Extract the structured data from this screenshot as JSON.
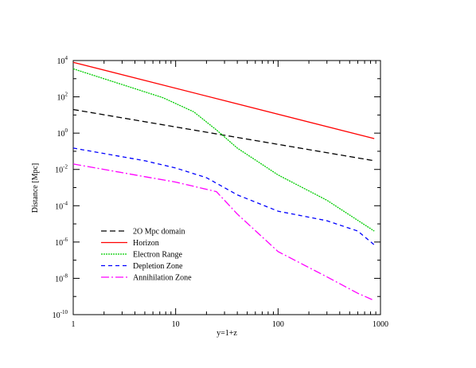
{
  "chart_data": {
    "type": "line",
    "title": "",
    "xlabel": "y=1+z",
    "ylabel": "Distance [Mpc]",
    "xscale": "log",
    "yscale": "log",
    "xlim": [
      1,
      1000
    ],
    "ylim": [
      1e-10,
      10000
    ],
    "grid": false,
    "legend_position": "bottom-left",
    "x_ticks": [
      {
        "value": 1,
        "label": "1"
      },
      {
        "value": 10,
        "label": "10"
      },
      {
        "value": 100,
        "label": "100"
      },
      {
        "value": 1000,
        "label": "1000"
      }
    ],
    "y_ticks": [
      {
        "value": 1e-10,
        "base": "10",
        "exp": "-10"
      },
      {
        "value": 1e-08,
        "base": "10",
        "exp": "-8"
      },
      {
        "value": 1e-06,
        "base": "10",
        "exp": "-6"
      },
      {
        "value": 0.0001,
        "base": "10",
        "exp": "-4"
      },
      {
        "value": 0.01,
        "base": "10",
        "exp": "-2"
      },
      {
        "value": 1,
        "base": "10",
        "exp": "0"
      },
      {
        "value": 100,
        "base": "10",
        "exp": "2"
      },
      {
        "value": 10000,
        "base": "10",
        "exp": "4"
      }
    ],
    "series": [
      {
        "name": "2O Mpc domain",
        "color": "#000000",
        "dash": "7,4",
        "x": [
          1,
          870
        ],
        "y": [
          20,
          0.03
        ]
      },
      {
        "name": "Horizon",
        "color": "#ff0000",
        "dash": "",
        "x": [
          1,
          870
        ],
        "y": [
          8000,
          0.5
        ]
      },
      {
        "name": "Electron Range",
        "color": "#00cc00",
        "dash": "2,1",
        "x": [
          1,
          7.5,
          15,
          25,
          40,
          100,
          300,
          870
        ],
        "y": [
          3500,
          90,
          15,
          1.5,
          0.15,
          0.005,
          0.0002,
          4e-06
        ]
      },
      {
        "name": "Depletion Zone",
        "color": "#0000ff",
        "dash": "5,4",
        "x": [
          1,
          5,
          10,
          20,
          40,
          100,
          300,
          600,
          870
        ],
        "y": [
          0.15,
          0.03,
          0.012,
          0.0035,
          0.0004,
          5e-05,
          1.5e-05,
          4e-06,
          7e-07
        ]
      },
      {
        "name": "Annihilation Zone",
        "color": "#ff00ff",
        "dash": "10,3,2,3",
        "x": [
          1,
          5,
          10,
          25,
          40,
          100,
          300,
          600,
          870
        ],
        "y": [
          0.02,
          0.004,
          0.002,
          0.0006,
          3.5e-05,
          3e-07,
          1.2e-08,
          1.5e-09,
          6e-10
        ]
      }
    ]
  }
}
